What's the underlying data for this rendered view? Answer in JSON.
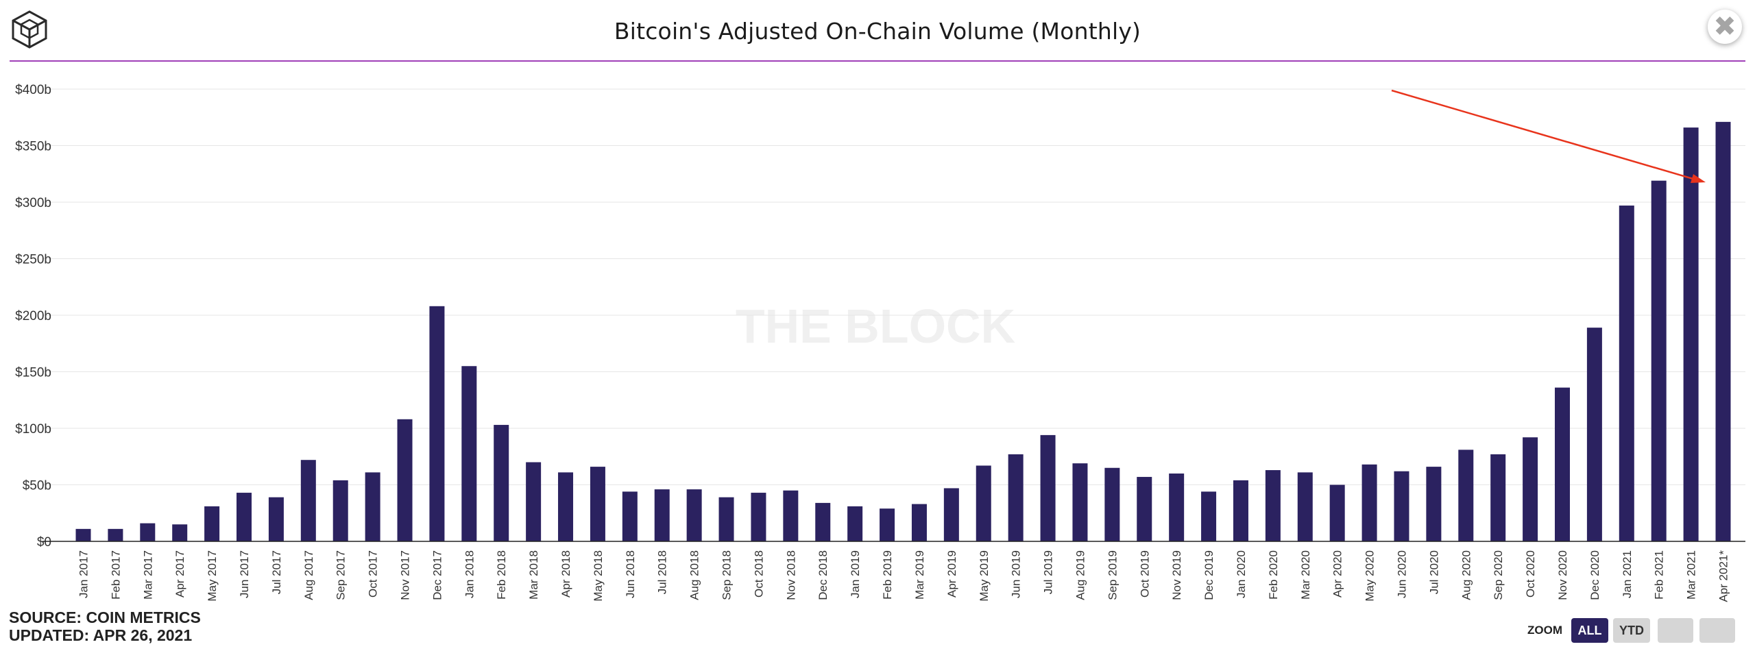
{
  "header": {
    "title": "Bitcoin's Adjusted On-Chain Volume (Monthly)",
    "close_label": "✖"
  },
  "watermark": "THE BLOCK",
  "footer": {
    "source": "SOURCE: COIN METRICS",
    "updated": "UPDATED: APR 26, 2021"
  },
  "zoom": {
    "label": "ZOOM",
    "buttons": [
      "ALL",
      "YTD",
      "",
      ""
    ],
    "selected": "ALL"
  },
  "colors": {
    "bar": "#2b2260",
    "header_rule": "#a040b8",
    "arrow": "#e8341c",
    "zoom_active": "#2b2260",
    "zoom_inactive": "#d6d6d6"
  },
  "icons": {
    "logo": "the-block-cube-logo-icon",
    "close": "close-icon",
    "annotation": "arrow-icon"
  },
  "chart_data": {
    "type": "bar",
    "title": "Bitcoin's Adjusted On-Chain Volume (Monthly)",
    "xlabel": "",
    "ylabel": "",
    "ylim": [
      0,
      400
    ],
    "y_unit": "billions USD",
    "y_ticks": [
      "$0",
      "$50b",
      "$100b",
      "$150b",
      "$200b",
      "$250b",
      "$300b",
      "$350b",
      "$400b"
    ],
    "grid": true,
    "legend": "none",
    "categories": [
      "Jan 2017",
      "Feb 2017",
      "Mar 2017",
      "Apr 2017",
      "May 2017",
      "Jun 2017",
      "Jul 2017",
      "Aug 2017",
      "Sep 2017",
      "Oct 2017",
      "Nov 2017",
      "Dec 2017",
      "Jan 2018",
      "Feb 2018",
      "Mar 2018",
      "Apr 2018",
      "May 2018",
      "Jun 2018",
      "Jul 2018",
      "Aug 2018",
      "Sep 2018",
      "Oct 2018",
      "Nov 2018",
      "Dec 2018",
      "Jan 2019",
      "Feb 2019",
      "Mar 2019",
      "Apr 2019",
      "May 2019",
      "Jun 2019",
      "Jul 2019",
      "Aug 2019",
      "Sep 2019",
      "Oct 2019",
      "Nov 2019",
      "Dec 2019",
      "Jan 2020",
      "Feb 2020",
      "Mar 2020",
      "Apr 2020",
      "May 2020",
      "Jun 2020",
      "Jul 2020",
      "Aug 2020",
      "Sep 2020",
      "Oct 2020",
      "Nov 2020",
      "Dec 2020",
      "Jan 2021",
      "Feb 2021",
      "Mar 2021",
      "Apr 2021*"
    ],
    "values": [
      11,
      11,
      16,
      15,
      31,
      43,
      39,
      72,
      54,
      61,
      108,
      208,
      155,
      103,
      70,
      61,
      66,
      44,
      46,
      46,
      39,
      43,
      45,
      34,
      31,
      29,
      33,
      47,
      67,
      77,
      94,
      69,
      65,
      57,
      60,
      44,
      54,
      63,
      61,
      50,
      68,
      62,
      66,
      81,
      77,
      92,
      136,
      189,
      297,
      319,
      366,
      371
    ]
  }
}
